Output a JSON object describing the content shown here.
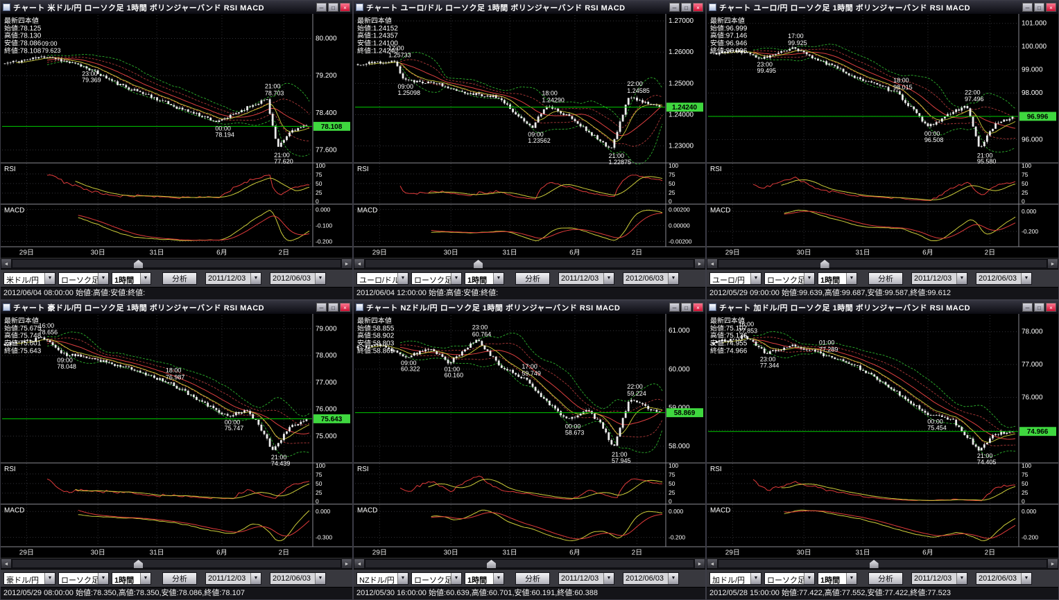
{
  "app": {
    "win": {
      "minimize": "─",
      "maximize": "□",
      "close": "×"
    },
    "scroll": {
      "left": "◄",
      "right": "►"
    },
    "dropdown_glyph": "▼",
    "colors": {
      "current_price": "#3fd83f",
      "current_line": "#00cc00",
      "band": "#2db32d",
      "rsi_line": "#e23b3b",
      "signal_line": "#cfcf3a",
      "candle": "#ececec"
    }
  },
  "shared": {
    "toolbar": {
      "chart_type": "ローソク足",
      "timeframe": "1時間",
      "analyze": "分析",
      "date_from": "2011/12/03",
      "date_to": "2012/06/03"
    },
    "pane_labels": {
      "rsi": "RSI",
      "macd": "MACD"
    },
    "rsi_ticks": [
      100,
      75,
      50,
      25,
      0
    ],
    "x_labels": [
      {
        "label": "29日",
        "x": 0.05
      },
      {
        "label": "30日",
        "x": 0.28
      },
      {
        "label": "31日",
        "x": 0.47
      },
      {
        "label": "6月",
        "x": 0.68
      },
      {
        "label": "2日",
        "x": 0.88
      }
    ]
  },
  "panels": [
    {
      "title": "チャート  米ドル/円  ローソク足  1時間  ボリンジャーバンド  RSI  MACD",
      "pair": "米ドル/円",
      "status": "2012/06/04 08:00:00 始値:高値:安値:終値:",
      "ohlc": [
        "最新四本値",
        "始値:78.125",
        "高値:78.130",
        "安値:78.086",
        "終値:78.108"
      ],
      "price_ticks": [
        {
          "v": 80.0,
          "label": "80.000"
        },
        {
          "v": 79.2,
          "label": "79.200"
        },
        {
          "v": 78.4,
          "label": "78.400"
        },
        {
          "v": 77.6,
          "label": "77.600"
        }
      ],
      "range": [
        77.35,
        80.5
      ],
      "current": {
        "v": 78.108,
        "label": "78.108"
      },
      "macd_ticks": [
        {
          "f": 0.1,
          "label": "0.000"
        },
        {
          "f": 0.5,
          "label": "-0.100"
        },
        {
          "f": 0.9,
          "label": "-0.200"
        }
      ],
      "annotations": [
        {
          "time": "09:00",
          "value": "79.623",
          "x": 0.15,
          "p": 79.623,
          "side": "above"
        },
        {
          "time": "23:00",
          "value": "79.369",
          "x": 0.28,
          "p": 79.369,
          "side": "below"
        },
        {
          "time": "00:00",
          "value": "78.194",
          "x": 0.71,
          "p": 78.194,
          "side": "below"
        },
        {
          "time": "21:00",
          "value": "78.703",
          "x": 0.87,
          "p": 78.703,
          "side": "above"
        },
        {
          "time": "21:00",
          "value": "77.620",
          "x": 0.9,
          "p": 77.62,
          "side": "below"
        }
      ],
      "keypoints": [
        [
          0,
          79.45
        ],
        [
          0.15,
          79.623
        ],
        [
          0.21,
          79.5
        ],
        [
          0.28,
          79.369
        ],
        [
          0.38,
          79.02
        ],
        [
          0.48,
          78.78
        ],
        [
          0.58,
          78.5
        ],
        [
          0.66,
          78.33
        ],
        [
          0.71,
          78.194
        ],
        [
          0.8,
          78.5
        ],
        [
          0.87,
          78.703
        ],
        [
          0.905,
          77.62
        ],
        [
          0.95,
          78.02
        ],
        [
          1,
          78.108
        ]
      ],
      "scroll_thumb": 0.37,
      "seed": 11
    },
    {
      "title": "チャート  ユーロ/ドル  ローソク足  1時間  ボリンジャーバンド  RSI  MACD",
      "pair": "ユーロ/ドル",
      "status": "2012/06/04 12:00:00 始値:高値:安値:終値:",
      "ohlc": [
        "最新四本値",
        "始値:1.24152",
        "高値:1.24357",
        "安値:1.24100",
        "終値:1.24240"
      ],
      "price_ticks": [
        {
          "v": 1.27,
          "label": "1.27000"
        },
        {
          "v": 1.26,
          "label": "1.26000"
        },
        {
          "v": 1.25,
          "label": "1.25000"
        },
        {
          "v": 1.24,
          "label": "1.24000"
        },
        {
          "v": 1.23,
          "label": "1.23000"
        }
      ],
      "range": [
        1.225,
        1.2718
      ],
      "current": {
        "v": 1.2424,
        "label": "1.24240"
      },
      "macd_ticks": [
        {
          "f": 0.1,
          "label": "0.00200"
        },
        {
          "f": 0.5,
          "label": "0.00000"
        },
        {
          "f": 0.9,
          "label": "-0.00200"
        }
      ],
      "annotations": [
        {
          "time": "17:00",
          "value": "1.25733",
          "x": 0.13,
          "p": 1.25733,
          "side": "above"
        },
        {
          "time": "09:00",
          "value": "1.25098",
          "x": 0.16,
          "p": 1.25098,
          "side": "below"
        },
        {
          "time": "09:00",
          "value": "1.23562",
          "x": 0.58,
          "p": 1.23562,
          "side": "below"
        },
        {
          "time": "18:00",
          "value": "1.24290",
          "x": 0.625,
          "p": 1.2429,
          "side": "above"
        },
        {
          "time": "21:00",
          "value": "1.22875",
          "x": 0.84,
          "p": 1.22875,
          "side": "below"
        },
        {
          "time": "22:00",
          "value": "1.24585",
          "x": 0.9,
          "p": 1.24585,
          "side": "above"
        }
      ],
      "keypoints": [
        [
          0,
          1.256
        ],
        [
          0.13,
          1.25733
        ],
        [
          0.16,
          1.25098
        ],
        [
          0.26,
          1.2503
        ],
        [
          0.36,
          1.2472
        ],
        [
          0.47,
          1.2455
        ],
        [
          0.58,
          1.23562
        ],
        [
          0.625,
          1.2429
        ],
        [
          0.7,
          1.2398
        ],
        [
          0.78,
          1.2335
        ],
        [
          0.84,
          1.22875
        ],
        [
          0.9,
          1.24585
        ],
        [
          1,
          1.2424
        ]
      ],
      "scroll_thumb": 0.33,
      "seed": 22
    },
    {
      "title": "チャート  ユーロ/円  ローソク足  1時間  ボリンジャーバンド  RSI  MACD",
      "pair": "ユーロ/円",
      "status": "2012/05/29 09:00:00 始値:99.639,高値:99.687,安値:99.587,終値:99.612",
      "ohlc": [
        "最新四本値",
        "始値:96.999",
        "高値:97.146",
        "安値:96.946",
        "終値:96.996"
      ],
      "price_ticks": [
        {
          "v": 101.0,
          "label": "101.000"
        },
        {
          "v": 100.0,
          "label": "100.000"
        },
        {
          "v": 99.0,
          "label": "99.000"
        },
        {
          "v": 98.0,
          "label": "98.000"
        },
        {
          "v": 97.0,
          "label": "97.000"
        },
        {
          "v": 96.0,
          "label": "96.000"
        }
      ],
      "range": [
        95.05,
        101.35
      ],
      "current": {
        "v": 96.996,
        "label": "96.996"
      },
      "macd_ticks": [
        {
          "f": 0.15,
          "label": "0.000"
        },
        {
          "f": 0.65,
          "label": "-0.200"
        }
      ],
      "annotations": [
        {
          "time": "17:00",
          "value": "99.925",
          "x": 0.28,
          "p": 99.925,
          "side": "above"
        },
        {
          "time": "23:00",
          "value": "99.495",
          "x": 0.18,
          "p": 99.495,
          "side": "below"
        },
        {
          "time": "18:00",
          "value": "98.015",
          "x": 0.62,
          "p": 98.015,
          "side": "above"
        },
        {
          "time": "00:00",
          "value": "96.508",
          "x": 0.72,
          "p": 96.508,
          "side": "below"
        },
        {
          "time": "22:00",
          "value": "97.496",
          "x": 0.85,
          "p": 97.496,
          "side": "above"
        },
        {
          "time": "21:00",
          "value": "95.580",
          "x": 0.89,
          "p": 95.58,
          "side": "below"
        }
      ],
      "keypoints": [
        [
          0,
          99.7
        ],
        [
          0.1,
          99.8
        ],
        [
          0.18,
          99.495
        ],
        [
          0.28,
          99.925
        ],
        [
          0.4,
          99.2
        ],
        [
          0.5,
          98.6
        ],
        [
          0.62,
          98.015
        ],
        [
          0.68,
          97.2
        ],
        [
          0.72,
          96.508
        ],
        [
          0.78,
          97.0
        ],
        [
          0.85,
          97.496
        ],
        [
          0.89,
          95.58
        ],
        [
          0.94,
          96.6
        ],
        [
          1,
          96.996
        ]
      ],
      "scroll_thumb": 0.31,
      "seed": 33
    },
    {
      "title": "チャート  豪ドル/円  ローソク足  1時間  ボリンジャーバンド  RSI  MACD",
      "pair": "豪ドル/円",
      "status": "2012/05/29 08:00:00 始値:78.350,高値:78.350,安値:78.086,終値:78.107",
      "ohlc": [
        "最新四本値",
        "始値:75.675",
        "高値:75.748",
        "安値:75.601",
        "終値:75.643"
      ],
      "price_ticks": [
        {
          "v": 79.0,
          "label": "79.000"
        },
        {
          "v": 78.0,
          "label": "78.000"
        },
        {
          "v": 77.0,
          "label": "77.000"
        },
        {
          "v": 76.0,
          "label": "76.000"
        },
        {
          "v": 75.0,
          "label": "75.000"
        }
      ],
      "range": [
        74.05,
        79.5
      ],
      "current": {
        "v": 75.643,
        "label": "75.643"
      },
      "macd_ticks": [
        {
          "f": 0.15,
          "label": "0.000"
        },
        {
          "f": 0.8,
          "label": "-0.300"
        }
      ],
      "annotations": [
        {
          "time": "16:00",
          "value": "78.656",
          "x": 0.14,
          "p": 78.656,
          "side": "above"
        },
        {
          "time": "09:00",
          "value": "78.048",
          "x": 0.2,
          "p": 78.048,
          "side": "below"
        },
        {
          "time": "18:00",
          "value": "76.987",
          "x": 0.55,
          "p": 76.987,
          "side": "above"
        },
        {
          "time": "00:00",
          "value": "75.747",
          "x": 0.74,
          "p": 75.747,
          "side": "below"
        },
        {
          "time": "21:00",
          "value": "74.439",
          "x": 0.89,
          "p": 74.439,
          "side": "below"
        }
      ],
      "keypoints": [
        [
          0,
          78.4
        ],
        [
          0.14,
          78.656
        ],
        [
          0.2,
          78.048
        ],
        [
          0.3,
          77.9
        ],
        [
          0.42,
          77.5
        ],
        [
          0.55,
          76.987
        ],
        [
          0.65,
          76.3
        ],
        [
          0.74,
          75.747
        ],
        [
          0.8,
          75.95
        ],
        [
          0.84,
          75.5
        ],
        [
          0.89,
          74.439
        ],
        [
          0.94,
          75.3
        ],
        [
          1,
          75.643
        ]
      ],
      "scroll_thumb": 0.37,
      "seed": 44
    },
    {
      "title": "チャート  NZドル/円  ローソク足  1時間  ボリンジャーバンド  RSI  MACD",
      "pair": "NZドル/円",
      "status": "2012/05/30 16:00:00 始値:60.639,高値:60.701,安値:60.191,終値:60.388",
      "ohlc": [
        "最新四本値",
        "始値:58.855",
        "高値:58.902",
        "安値:58.803",
        "終値:58.869"
      ],
      "price_ticks": [
        {
          "v": 61.0,
          "label": "61.000"
        },
        {
          "v": 60.0,
          "label": "60.000"
        },
        {
          "v": 59.0,
          "label": "59.000"
        },
        {
          "v": 58.0,
          "label": "58.000"
        }
      ],
      "range": [
        57.6,
        61.4
      ],
      "current": {
        "v": 58.869,
        "label": "58.869"
      },
      "macd_ticks": [
        {
          "f": 0.15,
          "label": "0.000"
        },
        {
          "f": 0.8,
          "label": "-0.200"
        }
      ],
      "annotations": [
        {
          "time": "23:00",
          "value": "60.764",
          "x": 0.4,
          "p": 60.764,
          "side": "above"
        },
        {
          "time": "09:00",
          "value": "60.322",
          "x": 0.17,
          "p": 60.322,
          "side": "below"
        },
        {
          "time": "01:00",
          "value": "60.160",
          "x": 0.31,
          "p": 60.16,
          "side": "below"
        },
        {
          "time": "17:00",
          "value": "59.749",
          "x": 0.56,
          "p": 59.749,
          "side": "above"
        },
        {
          "time": "00:00",
          "value": "58.673",
          "x": 0.7,
          "p": 58.673,
          "side": "below"
        },
        {
          "time": "22:00",
          "value": "59.224",
          "x": 0.9,
          "p": 59.224,
          "side": "above"
        },
        {
          "time": "21:00",
          "value": "57.945",
          "x": 0.85,
          "p": 57.945,
          "side": "below"
        }
      ],
      "keypoints": [
        [
          0,
          60.55
        ],
        [
          0.08,
          60.65
        ],
        [
          0.17,
          60.322
        ],
        [
          0.25,
          60.55
        ],
        [
          0.31,
          60.16
        ],
        [
          0.4,
          60.764
        ],
        [
          0.48,
          60.05
        ],
        [
          0.56,
          59.749
        ],
        [
          0.63,
          59.15
        ],
        [
          0.7,
          58.673
        ],
        [
          0.76,
          58.95
        ],
        [
          0.81,
          58.55
        ],
        [
          0.85,
          57.945
        ],
        [
          0.9,
          59.224
        ],
        [
          1,
          58.869
        ]
      ],
      "scroll_thumb": 0.37,
      "seed": 55
    },
    {
      "title": "チャート  加ドル/円  ローソク足  1時間  ボリンジャーバンド  RSI  MACD",
      "pair": "加ドル/円",
      "status": "2012/05/28 15:00:00 始値:77.422,高値:77.552,安値:77.422,終値:77.523",
      "ohlc": [
        "最新四本値",
        "始値:75.107",
        "高値:75.136",
        "安値:74.955",
        "終値:74.966"
      ],
      "price_ticks": [
        {
          "v": 78.0,
          "label": "78.000"
        },
        {
          "v": 77.0,
          "label": "77.000"
        },
        {
          "v": 76.0,
          "label": "76.000"
        },
        {
          "v": 75.0,
          "label": "75.000"
        }
      ],
      "range": [
        74.05,
        78.5
      ],
      "current": {
        "v": 74.966,
        "label": "74.966"
      },
      "macd_ticks": [
        {
          "f": 0.15,
          "label": "0.000"
        },
        {
          "f": 0.8,
          "label": "-0.200"
        }
      ],
      "annotations": [
        {
          "time": "16:00",
          "value": "77.853",
          "x": 0.12,
          "p": 77.853,
          "side": "above"
        },
        {
          "time": "23:00",
          "value": "77.344",
          "x": 0.19,
          "p": 77.344,
          "side": "below"
        },
        {
          "time": "01:00",
          "value": "77.289",
          "x": 0.38,
          "p": 77.289,
          "side": "above"
        },
        {
          "time": "00:00",
          "value": "75.454",
          "x": 0.73,
          "p": 75.454,
          "side": "below"
        },
        {
          "time": "21:00",
          "value": "74.405",
          "x": 0.89,
          "p": 74.405,
          "side": "below"
        }
      ],
      "keypoints": [
        [
          0,
          77.65
        ],
        [
          0.12,
          77.853
        ],
        [
          0.19,
          77.344
        ],
        [
          0.28,
          77.6
        ],
        [
          0.38,
          77.289
        ],
        [
          0.48,
          77.0
        ],
        [
          0.58,
          76.4
        ],
        [
          0.66,
          75.9
        ],
        [
          0.73,
          75.454
        ],
        [
          0.8,
          75.35
        ],
        [
          0.89,
          74.405
        ],
        [
          0.94,
          74.9
        ],
        [
          1,
          74.966
        ]
      ],
      "scroll_thumb": 0.46,
      "seed": 66
    }
  ]
}
